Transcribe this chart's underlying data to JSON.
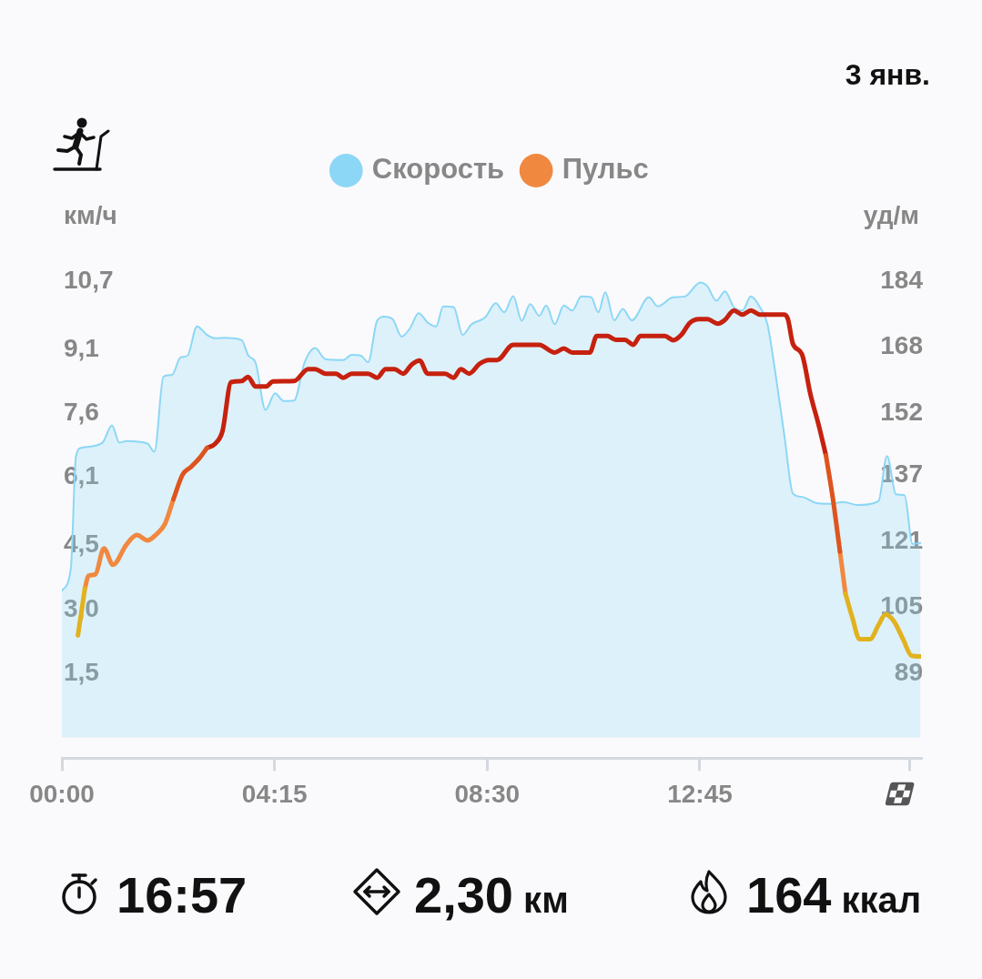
{
  "chart_data": {
    "type": "line",
    "legend": "top",
    "ylabel": "км/ч",
    "y2label": "уд/м",
    "annotations": [
      "3 янв.",
      "16:57",
      "2,30 км",
      "164 ккал"
    ],
    "xlim": [
      0,
      17.17
    ],
    "xticks": [
      {
        "value": 0,
        "label": "00:00"
      },
      {
        "value": 4.25,
        "label": "04:15"
      },
      {
        "value": 8.5,
        "label": "08:30"
      },
      {
        "value": 12.75,
        "label": "12:45"
      },
      {
        "value": 16.95,
        "label": null
      }
    ],
    "ylim": [
      -0.49,
      10.7
    ],
    "yticks": [
      {
        "value": 1.5,
        "label": "1,5"
      },
      {
        "value": 3.0,
        "label": "3,0"
      },
      {
        "value": 4.5,
        "label": "4,5"
      },
      {
        "value": 6.1,
        "label": "6,1"
      },
      {
        "value": 7.6,
        "label": "7,6"
      },
      {
        "value": 9.1,
        "label": "9,1"
      },
      {
        "value": 10.7,
        "label": "10,7"
      }
    ],
    "y2lim": [
      68.45,
      184
    ],
    "y2ticks": [
      89,
      105,
      121,
      137,
      152,
      168,
      184
    ],
    "series": [
      {
        "name": "Скорость",
        "type": "area",
        "color": "#8cd7f5",
        "x": [
          0,
          0.18,
          0.28,
          0.39,
          0.81,
          1.0,
          1.15,
          1.29,
          1.71,
          1.85,
          2.03,
          2.2,
          2.37,
          2.51,
          2.7,
          2.9,
          3.07,
          3.25,
          3.59,
          3.73,
          3.87,
          4.07,
          4.26,
          4.43,
          4.64,
          4.85,
          5.06,
          5.27,
          5.62,
          5.79,
          5.98,
          6.12,
          6.3,
          6.44,
          6.61,
          6.79,
          6.96,
          7.13,
          7.31,
          7.48,
          7.62,
          7.83,
          8.01,
          8.18,
          8.46,
          8.67,
          8.84,
          9.02,
          9.19,
          9.36,
          9.54,
          9.68,
          9.85,
          10.03,
          10.2,
          10.38,
          10.58,
          10.72,
          10.86,
          11.04,
          11.21,
          11.39,
          11.73,
          11.91,
          12.21,
          12.45,
          12.76,
          12.9,
          13.08,
          13.25,
          13.43,
          13.6,
          13.77,
          13.95,
          14.1,
          14.26,
          14.44,
          14.61,
          14.79,
          15.07,
          15.34,
          15.62,
          15.9,
          16.32,
          16.49,
          16.67,
          16.84,
          17.0,
          17.16
        ],
        "values": [
          3.44,
          3.97,
          6.58,
          6.79,
          6.91,
          7.32,
          6.91,
          6.95,
          6.89,
          6.7,
          8.46,
          8.5,
          8.91,
          8.95,
          9.64,
          9.44,
          9.36,
          9.37,
          9.32,
          8.95,
          8.79,
          7.68,
          8.07,
          7.89,
          7.9,
          8.79,
          9.13,
          8.87,
          8.85,
          8.97,
          8.95,
          8.8,
          9.77,
          9.87,
          9.81,
          9.4,
          9.6,
          9.95,
          9.73,
          9.64,
          10.11,
          10.09,
          9.44,
          9.68,
          9.85,
          10.18,
          9.97,
          10.35,
          9.77,
          10.16,
          9.89,
          10.13,
          9.69,
          10.13,
          10.01,
          10.34,
          10.32,
          9.97,
          10.44,
          9.78,
          10.05,
          9.78,
          10.32,
          10.11,
          10.32,
          10.34,
          10.67,
          10.58,
          10.24,
          10.46,
          10.09,
          10.01,
          10.34,
          10.09,
          9.69,
          8.54,
          7.07,
          5.72,
          5.64,
          5.5,
          5.48,
          5.52,
          5.45,
          5.54,
          6.6,
          5.7,
          5.68,
          4.54,
          4.56
        ]
      },
      {
        "name": "Пульс",
        "axis": "y2",
        "color": "#f0883f",
        "x": [
          0.46,
          0.53,
          0.67,
          0.84,
          1.02,
          1.29,
          1.5,
          1.71,
          1.89,
          2.06,
          2.23,
          8.9,
          15.55,
          15.66
        ],
        "values": [
          109.6,
          112.6,
          113.0,
          119.3,
          115.3,
          120.2,
          122.5,
          121.2,
          122.7,
          125.2,
          131.2,
          null,
          118.5,
          108.3
        ]
      },
      {
        "axis": "y2",
        "color": "#c6210f",
        "x": [
          2.9,
          3.07,
          3.21,
          3.38,
          3.59,
          3.72,
          3.87,
          4.08,
          4.22,
          4.64,
          4.92,
          5.06,
          5.27,
          5.48,
          5.62,
          5.79,
          6.12,
          6.3,
          6.47,
          6.65,
          6.82,
          6.99,
          7.15,
          7.31,
          7.66,
          7.83,
          7.97,
          8.14,
          8.35,
          8.53,
          8.7,
          9.02,
          9.54,
          9.85,
          10.03,
          10.2,
          10.55,
          10.69,
          10.9,
          11.07,
          11.25,
          11.42,
          11.56,
          12.05,
          12.22,
          12.38,
          12.55,
          12.73,
          12.9,
          13.11,
          13.25,
          13.43,
          13.6,
          13.77,
          13.95,
          14.44,
          14.51,
          14.61,
          14.79,
          14.96,
          15.13,
          15.27
        ],
        "values": [
          143.6,
          144.7,
          147.7,
          159.5,
          159.8,
          160.8,
          158.5,
          158.5,
          159.7,
          159.8,
          162.7,
          162.7,
          161.6,
          161.6,
          160.6,
          161.6,
          161.6,
          160.6,
          162.7,
          162.7,
          161.6,
          163.8,
          164.8,
          161.6,
          161.6,
          160.6,
          162.7,
          161.6,
          164.0,
          164.9,
          164.9,
          168.6,
          168.6,
          166.7,
          167.7,
          166.7,
          166.7,
          170.7,
          170.7,
          169.8,
          169.8,
          168.6,
          170.7,
          170.7,
          169.7,
          171.0,
          173.9,
          174.8,
          174.8,
          173.7,
          174.6,
          176.9,
          175.9,
          176.9,
          175.9,
          175.9,
          174.8,
          168.8,
          166.3,
          156.6,
          148.9,
          141.8
        ]
      },
      {
        "axis": "y2",
        "color": "#de541e",
        "x": [
          2.23,
          2.41,
          2.58,
          2.76,
          2.9,
          8.9,
          15.27,
          15.41,
          15.55
        ],
        "values": [
          131.2,
          137.1,
          139.0,
          141.3,
          143.6,
          null,
          141.8,
          131.2,
          118.5
        ]
      },
      {
        "axis": "y2",
        "color": "#e2b21e",
        "x": [
          0.32,
          0.46,
          8.9,
          15.66,
          15.8,
          15.94,
          16.15,
          16.32,
          16.46,
          16.63,
          16.81,
          16.98,
          17.16
        ],
        "values": [
          98.2,
          109.6,
          null,
          108.3,
          102.4,
          97.3,
          97.3,
          100.7,
          103.3,
          101.6,
          97.3,
          93.3,
          93.1
        ]
      }
    ]
  }
}
